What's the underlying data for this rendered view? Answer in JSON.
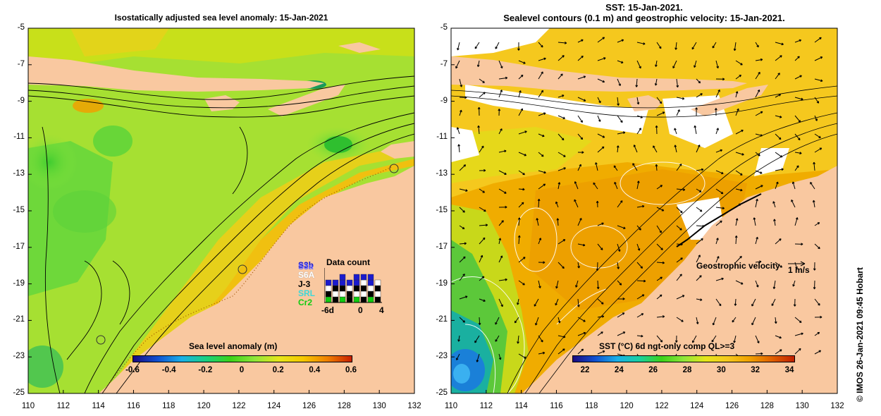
{
  "left_panel": {
    "title": "Isostatically adjusted sea level anomaly: 15-Jan-2021",
    "colorbar_title": "Sea level anomaly (m)",
    "colorbar_ticks": [
      "-0.6",
      "-0.4",
      "-0.2",
      "0",
      "0.2",
      "0.4",
      "0.6"
    ],
    "data_count": {
      "title": "Data count",
      "missions": [
        {
          "label": "S3b",
          "color": "#1a1acd"
        },
        {
          "label": "S3a",
          "color": "#6a6aff"
        },
        {
          "label": "S6A",
          "color": "#ffffff"
        },
        {
          "label": "J-3",
          "color": "#000000"
        },
        {
          "label": "SRL",
          "color": "#3fd8d8"
        },
        {
          "label": "Cr2",
          "color": "#11cc11"
        }
      ],
      "axis_labels": [
        "-6d",
        "0",
        "4"
      ]
    }
  },
  "right_panel": {
    "title_line1": "SST: 15-Jan-2021.",
    "title_line2": "Sealevel contours (0.1 m) and geostrophic velocity: 15-Jan-2021.",
    "colorbar_title": "SST (°C) 6d ngt-only comp QL>=3",
    "colorbar_ticks": [
      "22",
      "24",
      "26",
      "28",
      "30",
      "32",
      "34"
    ],
    "velocity_label": "Geostrophic velocity",
    "velocity_scale": "1 m/s"
  },
  "y_ticks": [
    "-5",
    "-7",
    "-9",
    "-11",
    "-13",
    "-15",
    "-17",
    "-19",
    "-21",
    "-23",
    "-25"
  ],
  "x_ticks": [
    "110",
    "112",
    "114",
    "116",
    "118",
    "120",
    "122",
    "124",
    "126",
    "128",
    "130",
    "132"
  ],
  "credit": "© IMOS 26-Jan-2021 09:45 Hobart",
  "colors": {
    "land": "#f9c8a0",
    "sla_green": "#8ee63a",
    "sla_yellow": "#e6e61a",
    "sla_orange": "#f5b400",
    "sst_orange": "#f0a800",
    "sst_yellow": "#f5c81e"
  }
}
